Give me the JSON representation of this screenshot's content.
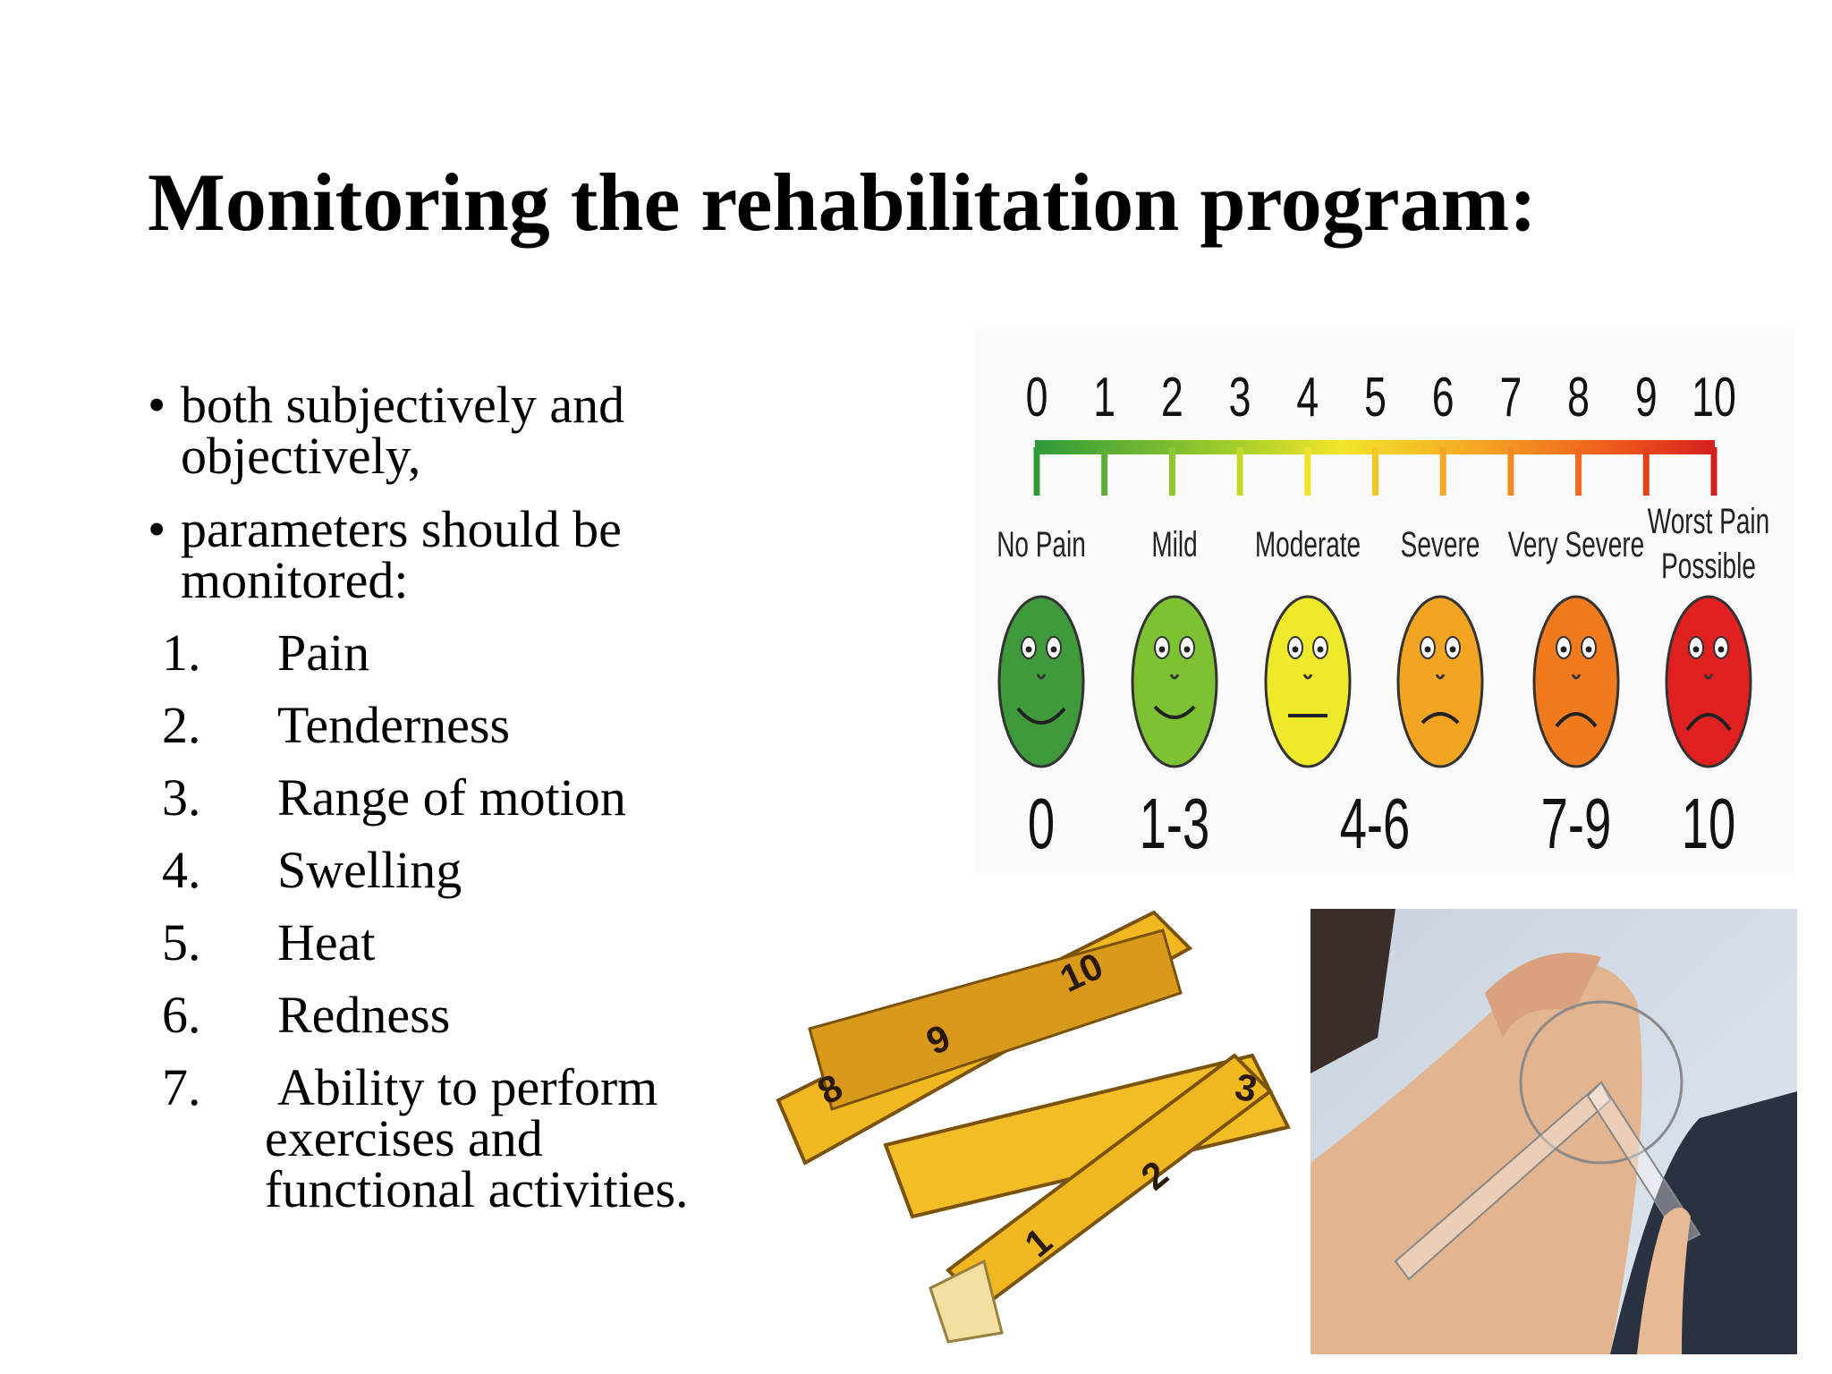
{
  "title": "Monitoring the rehabilitation program:",
  "bullets": [
    "both subjectively and objectively,",
    "parameters should be monitored:"
  ],
  "items": [
    {
      "number": "1.",
      "text": "Pain"
    },
    {
      "number": "2.",
      "text": "Tenderness"
    },
    {
      "number": "3.",
      "text": "Range of motion"
    },
    {
      "number": "4.",
      "text": "Swelling"
    },
    {
      "number": "5.",
      "text": "Heat"
    },
    {
      "number": "6.",
      "text": "Redness"
    },
    {
      "number": "7.",
      "text": "Ability to perform exercises and functional activities."
    }
  ],
  "pain_scale": {
    "numbers": [
      "0",
      "1",
      "2",
      "3",
      "4",
      "5",
      "6",
      "7",
      "8",
      "9",
      "10"
    ],
    "levels": [
      {
        "label": [
          "No Pain"
        ]
      },
      {
        "label": [
          "Mild"
        ]
      },
      {
        "label": [
          "Moderate"
        ]
      },
      {
        "label": [
          "Severe"
        ]
      },
      {
        "label": [
          "Very Severe"
        ]
      },
      {
        "label": [
          "Worst Pain",
          "Possible"
        ]
      }
    ],
    "ranges": [
      "0",
      "1-3",
      "4-6",
      "7-9",
      "10"
    ]
  },
  "tape_measure": {
    "labels": [
      "10",
      "9",
      "8",
      "3",
      "2",
      "1"
    ]
  }
}
